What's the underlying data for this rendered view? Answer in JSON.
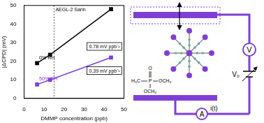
{
  "chart_data": {
    "type": "line",
    "x_label": "DMMP concentration (ppb)",
    "y_label": "|ΔCPD| (mV)",
    "x": [
      6.5,
      13,
      43.5
    ],
    "series": [
      {
        "name": "0% RH",
        "color": "#000000",
        "marker": "square",
        "values": [
          19,
          23.5,
          48
        ],
        "slope_label": "0.78 mV ppb⁻¹"
      },
      {
        "name": "50% RH",
        "color": "#7f3fd6",
        "marker": "square",
        "values": [
          7.5,
          10,
          22
        ],
        "slope_label": "0.39 mV ppb⁻¹"
      }
    ],
    "annotations": [
      {
        "x": 15,
        "text": "AEGL-2 Sarin",
        "line_style": "dotted"
      }
    ],
    "xlim": [
      0,
      50
    ],
    "xticks": [
      0,
      10,
      20,
      30,
      40,
      50
    ],
    "ylim": [
      0,
      50
    ],
    "yticks": [
      0,
      10,
      20,
      30,
      40,
      50
    ],
    "grid": false
  },
  "diagram": {
    "labels": {
      "voltmeter": "V",
      "source": "V₀",
      "ammeter": "A",
      "current": "i(t)"
    },
    "molecule": {
      "atoms": [
        "O",
        "P",
        "H₃C",
        "OCH₃",
        "OCH₃"
      ]
    }
  }
}
